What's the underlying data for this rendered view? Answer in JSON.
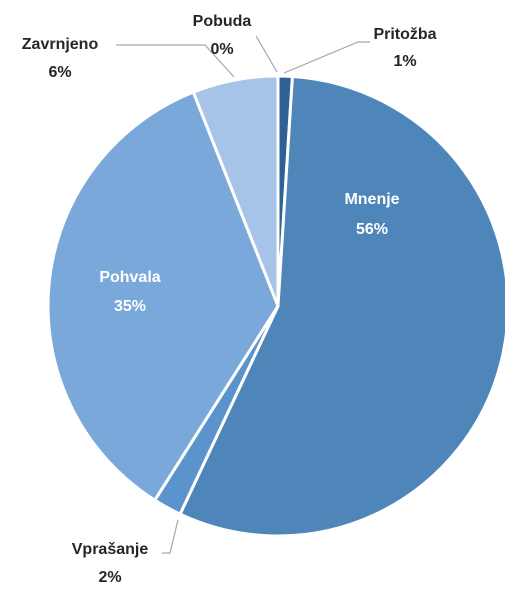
{
  "chart_data": {
    "type": "pie",
    "categories": [
      "Pritožba",
      "Mnenje",
      "Vprašanje",
      "Pohvala",
      "Zavrnjeno",
      "Pobuda"
    ],
    "values": [
      1,
      56,
      2,
      35,
      6,
      0
    ],
    "value_labels": [
      "1%",
      "56%",
      "2%",
      "35%",
      "6%",
      "0%"
    ],
    "colors": [
      "#2f6294",
      "#4e86b9",
      "#5b93cd",
      "#7aa8da",
      "#a7c3e7",
      "#c6d7ef"
    ]
  }
}
